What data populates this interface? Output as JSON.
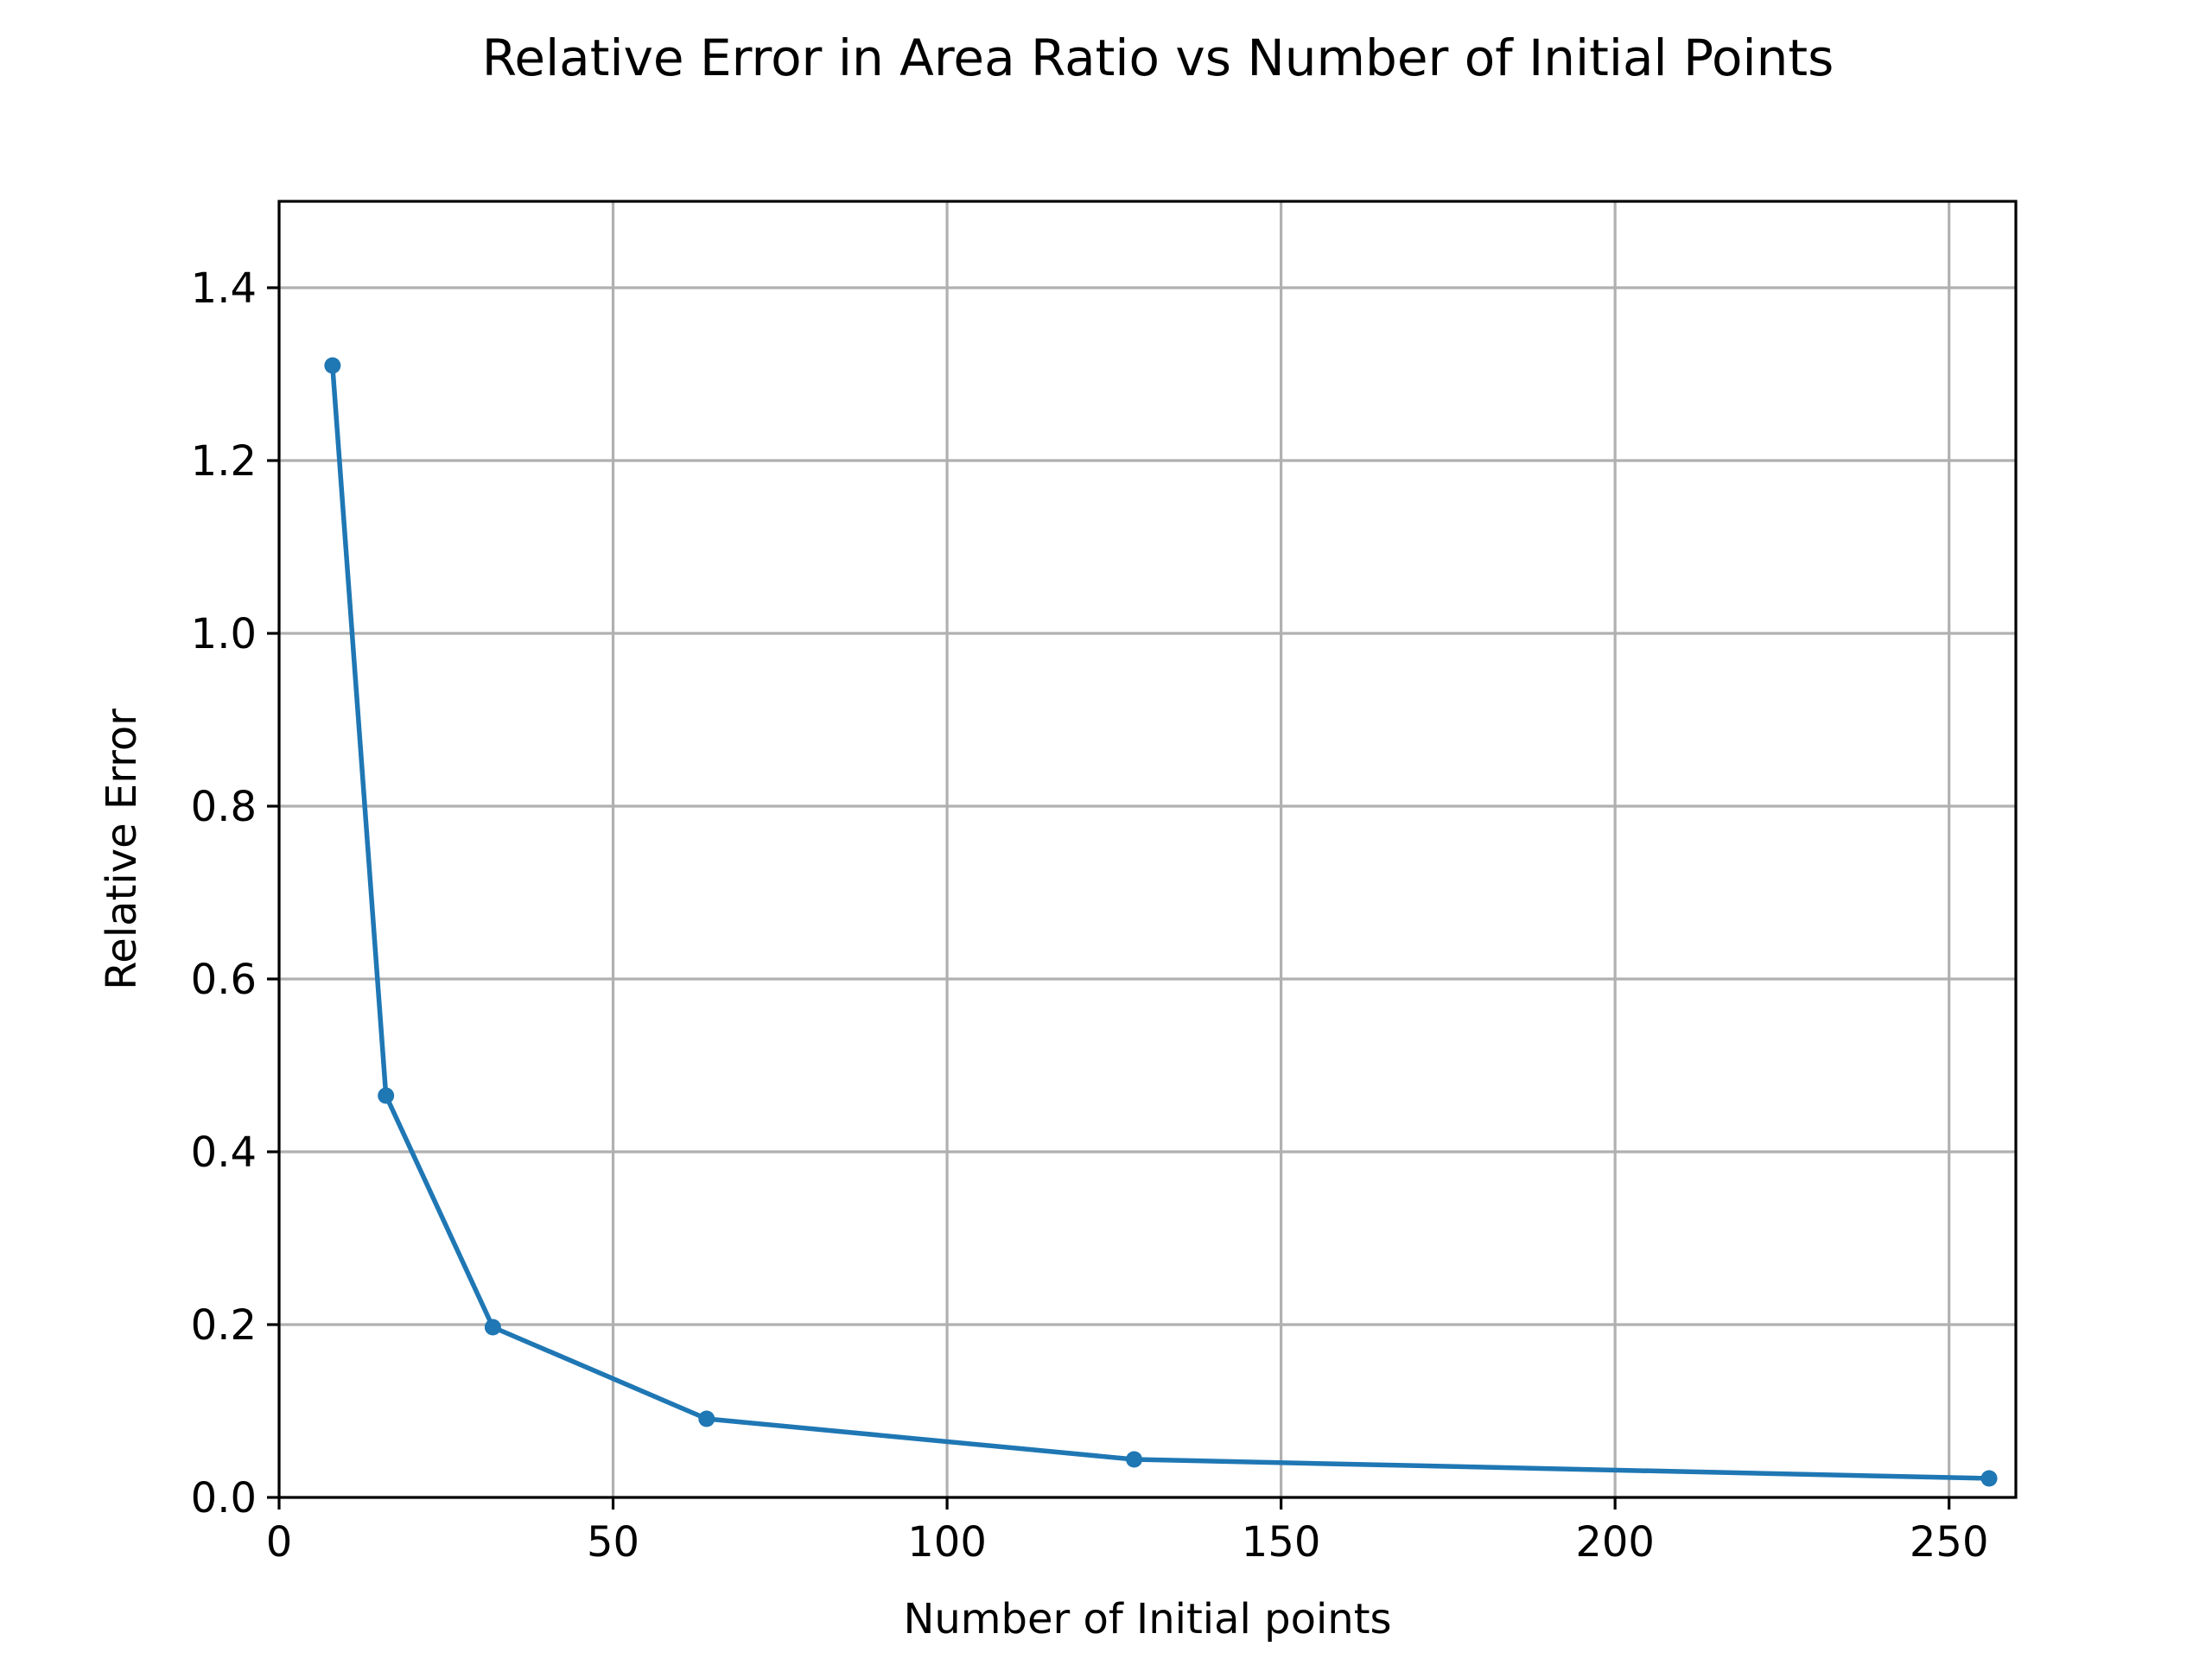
{
  "chart_data": {
    "type": "line",
    "title": "Relative Error in Area Ratio vs Number of Initial Points",
    "xlabel": "Number of Initial points",
    "ylabel": "Relative Error",
    "xlim": [
      0,
      260
    ],
    "ylim": [
      0,
      1.5
    ],
    "xticks": [
      0,
      50,
      100,
      150,
      200,
      250
    ],
    "xtick_labels": [
      "0",
      "50",
      "100",
      "150",
      "200",
      "250"
    ],
    "yticks": [
      0.0,
      0.2,
      0.4,
      0.6,
      0.8,
      1.0,
      1.2,
      1.4
    ],
    "ytick_labels": [
      "0.0",
      "0.2",
      "0.4",
      "0.6",
      "0.8",
      "1.0",
      "1.2",
      "1.4"
    ],
    "grid": true,
    "series": [
      {
        "color": "#1f77b4",
        "marker": "circle",
        "x": [
          8,
          16,
          32,
          64,
          128,
          256
        ],
        "y": [
          1.31,
          0.465,
          0.197,
          0.091,
          0.044,
          0.022
        ]
      }
    ]
  }
}
